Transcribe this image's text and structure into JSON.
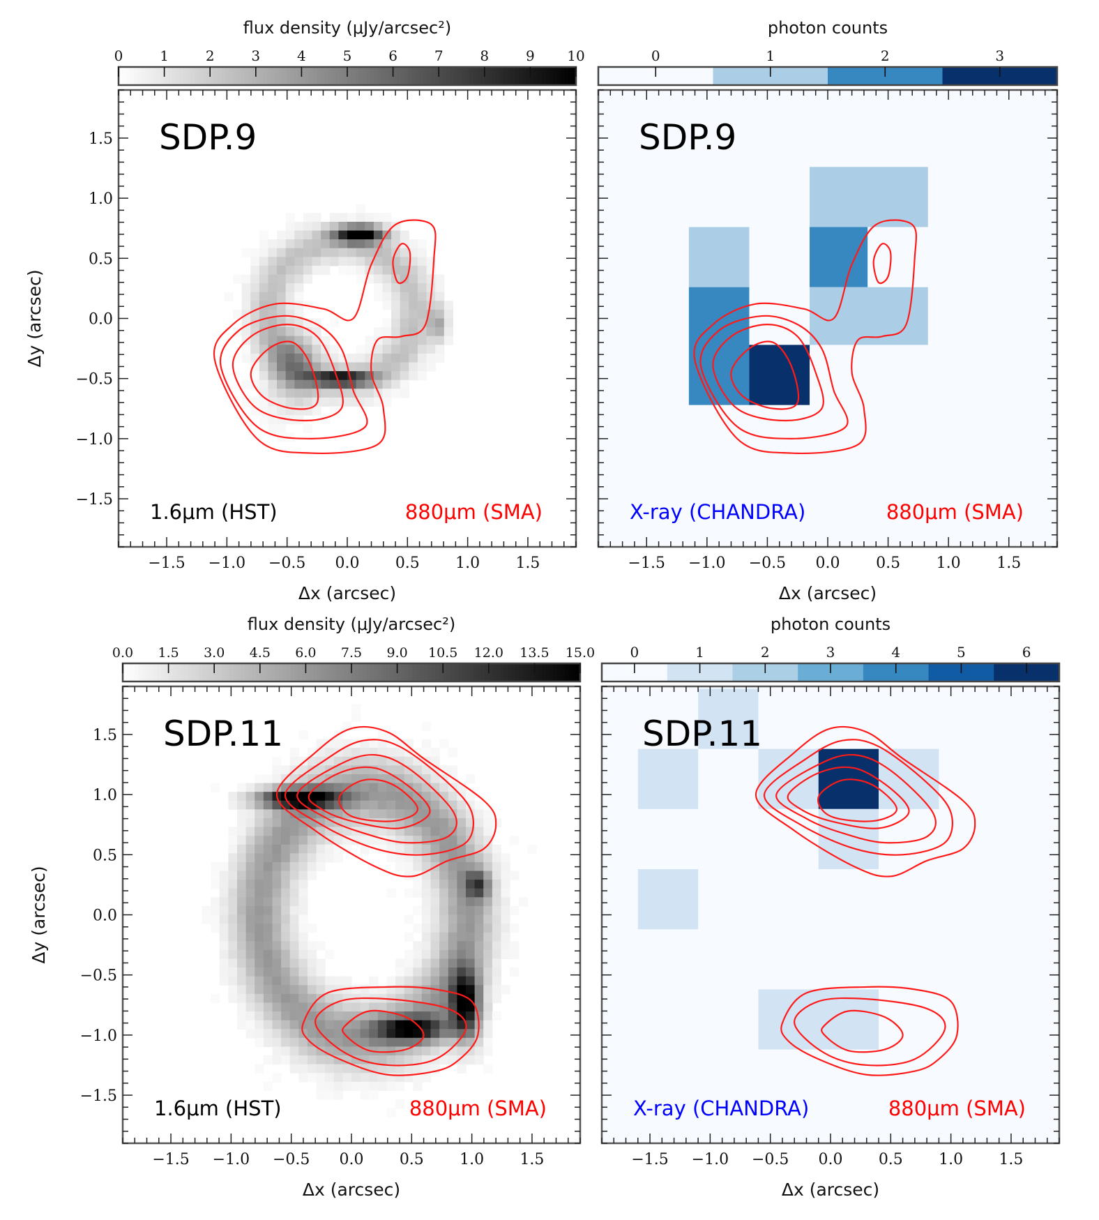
{
  "chart_data": [
    {
      "id": "sdp9-hst",
      "type": "heatmap",
      "title": "SDP.9",
      "colormap": "gray_r",
      "colorbar": {
        "label": "flux density (μJy/arcsec²)",
        "ticks": [
          "0",
          "1",
          "2",
          "3",
          "4",
          "5",
          "6",
          "7",
          "8",
          "9",
          "10"
        ],
        "range": [
          0,
          10
        ]
      },
      "xlabel": "Δx (arcsec)",
      "ylabel": "Δy (arcsec)",
      "xlim": [
        -1.9,
        1.9
      ],
      "ylim": [
        -1.9,
        1.9
      ],
      "xticks": [
        "−1.5",
        "−1.0",
        "−0.5",
        "0.0",
        "0.5",
        "1.0",
        "1.5"
      ],
      "yticks": [
        "1.5",
        "1.0",
        "0.5",
        "0.0",
        "−0.5",
        "−1.0",
        "−1.5"
      ],
      "legend_left": {
        "text": "1.6μm (HST)",
        "color": "#000000"
      },
      "legend_right": {
        "text": "880μm (SMA)",
        "color": "#ff0000"
      },
      "image_blobs": [
        {
          "x": -0.05,
          "y": 0.05,
          "rx": 0.75,
          "ry": 0.7,
          "value": 2.5,
          "ring": true
        },
        {
          "x": 0.1,
          "y": 0.7,
          "rx": 0.2,
          "ry": 0.07,
          "value": 10
        },
        {
          "x": -0.05,
          "y": -0.5,
          "rx": 0.25,
          "ry": 0.06,
          "value": 8
        },
        {
          "x": -0.45,
          "y": -0.4,
          "rx": 0.2,
          "ry": 0.3,
          "value": 3.5
        },
        {
          "x": 0.75,
          "y": -0.05,
          "rx": 0.08,
          "ry": 0.15,
          "value": 3
        }
      ],
      "contours": [
        {
          "level": 1,
          "points": [
            [
              -1.1,
              -0.35
            ],
            [
              -0.95,
              -0.05
            ],
            [
              -0.6,
              0.12
            ],
            [
              -0.2,
              0.08
            ],
            [
              0.05,
              0.0
            ],
            [
              0.2,
              0.45
            ],
            [
              0.4,
              0.78
            ],
            [
              0.7,
              0.78
            ],
            [
              0.72,
              0.5
            ],
            [
              0.65,
              -0.05
            ],
            [
              0.45,
              -0.15
            ],
            [
              0.25,
              -0.18
            ],
            [
              0.2,
              -0.45
            ],
            [
              0.3,
              -0.75
            ],
            [
              0.25,
              -1.05
            ],
            [
              -0.3,
              -1.12
            ],
            [
              -0.75,
              -1.0
            ],
            [
              -1.1,
              -0.35
            ]
          ]
        },
        {
          "level": 2,
          "points": [
            [
              -1.05,
              -0.4
            ],
            [
              -0.9,
              -0.1
            ],
            [
              -0.55,
              0.02
            ],
            [
              -0.25,
              -0.05
            ],
            [
              -0.05,
              -0.25
            ],
            [
              0.05,
              -0.6
            ],
            [
              0.15,
              -0.9
            ],
            [
              -0.3,
              -1.0
            ],
            [
              -0.75,
              -0.9
            ],
            [
              -1.05,
              -0.4
            ]
          ]
        },
        {
          "level": 3,
          "points": [
            [
              -0.95,
              -0.4
            ],
            [
              -0.8,
              -0.15
            ],
            [
              -0.5,
              -0.05
            ],
            [
              -0.25,
              -0.15
            ],
            [
              -0.1,
              -0.45
            ],
            [
              -0.05,
              -0.75
            ],
            [
              -0.35,
              -0.85
            ],
            [
              -0.75,
              -0.75
            ],
            [
              -0.95,
              -0.4
            ]
          ]
        },
        {
          "level": 4,
          "points": [
            [
              -0.8,
              -0.45
            ],
            [
              -0.65,
              -0.25
            ],
            [
              -0.45,
              -0.2
            ],
            [
              -0.3,
              -0.4
            ],
            [
              -0.25,
              -0.7
            ],
            [
              -0.45,
              -0.75
            ],
            [
              -0.7,
              -0.65
            ],
            [
              -0.8,
              -0.45
            ]
          ]
        },
        {
          "level": 4,
          "points": [
            [
              0.38,
              0.48
            ],
            [
              0.45,
              0.62
            ],
            [
              0.52,
              0.55
            ],
            [
              0.5,
              0.35
            ],
            [
              0.42,
              0.3
            ],
            [
              0.38,
              0.48
            ]
          ]
        }
      ]
    },
    {
      "id": "sdp9-chandra",
      "type": "heatmap",
      "title": "SDP.9",
      "colormap": "Blues",
      "colorbar": {
        "label": "photon counts",
        "ticks": [
          "0",
          "1",
          "2",
          "3"
        ],
        "range": [
          -0.5,
          3.5
        ],
        "colors": [
          "#f7fbff",
          "#abcde5",
          "#3787c0",
          "#08306b"
        ]
      },
      "xlabel": "Δx (arcsec)",
      "xlim": [
        -1.9,
        1.9
      ],
      "ylim": [
        -1.9,
        1.9
      ],
      "xticks": [
        "−1.5",
        "−1.0",
        "−0.5",
        "0.0",
        "0.5",
        "1.0",
        "1.5"
      ],
      "legend_left": {
        "text": "X-ray (CHANDRA)",
        "color": "#0000ff"
      },
      "legend_right": {
        "text": "880μm (SMA)",
        "color": "#ff0000"
      },
      "pixels": [
        {
          "x0": -1.15,
          "y0": 0.26,
          "x1": -0.65,
          "y1": 0.76,
          "count": 1
        },
        {
          "x0": -1.15,
          "y0": -0.72,
          "x1": -0.65,
          "y1": 0.26,
          "count": 2
        },
        {
          "x0": -0.65,
          "y0": -0.72,
          "x1": -0.15,
          "y1": -0.22,
          "count": 3
        },
        {
          "x0": -0.15,
          "y0": 0.76,
          "x1": 0.83,
          "y1": 1.26,
          "count": 1
        },
        {
          "x0": -0.15,
          "y0": 0.26,
          "x1": 0.33,
          "y1": 0.76,
          "count": 2
        },
        {
          "x0": -0.15,
          "y0": -0.22,
          "x1": 0.83,
          "y1": 0.26,
          "count": 1
        }
      ],
      "contours_ref": "sdp9-hst"
    },
    {
      "id": "sdp11-hst",
      "type": "heatmap",
      "title": "SDP.11",
      "colormap": "gray_r",
      "colorbar": {
        "label": "flux density (μJy/arcsec²)",
        "ticks": [
          "0.0",
          "1.5",
          "3.0",
          "4.5",
          "6.0",
          "7.5",
          "9.0",
          "10.5",
          "12.0",
          "13.5",
          "15.0"
        ],
        "range": [
          0,
          15
        ]
      },
      "xlabel": "Δx (arcsec)",
      "ylabel": "Δy (arcsec)",
      "xlim": [
        -1.9,
        1.9
      ],
      "ylim": [
        -1.9,
        1.9
      ],
      "xticks": [
        "−1.5",
        "−1.0",
        "−0.5",
        "0.0",
        "0.5",
        "1.0",
        "1.5"
      ],
      "yticks": [
        "1.5",
        "1.0",
        "0.5",
        "0.0",
        "−0.5",
        "−1.0",
        "−1.5"
      ],
      "legend_left": {
        "text": "1.6μm (HST)",
        "color": "#000000"
      },
      "legend_right": {
        "text": "880μm (SMA)",
        "color": "#ff0000"
      },
      "image_blobs": [
        {
          "x": 0.1,
          "y": 0.0,
          "rx": 1.05,
          "ry": 1.25,
          "value": 6,
          "ring": true
        },
        {
          "x": -0.45,
          "y": 0.97,
          "rx": 0.32,
          "ry": 0.08,
          "value": 15
        },
        {
          "x": 0.95,
          "y": -0.75,
          "rx": 0.12,
          "ry": 0.28,
          "value": 14
        },
        {
          "x": 0.5,
          "y": -0.95,
          "rx": 0.3,
          "ry": 0.1,
          "value": 11
        },
        {
          "x": 1.05,
          "y": 0.25,
          "rx": 0.1,
          "ry": 0.12,
          "value": 8
        }
      ],
      "contours": [
        {
          "level": 1,
          "points": [
            [
              -0.62,
              1.0
            ],
            [
              -0.3,
              1.35
            ],
            [
              0.0,
              1.55
            ],
            [
              0.3,
              1.52
            ],
            [
              0.6,
              1.3
            ],
            [
              1.1,
              0.95
            ],
            [
              1.2,
              0.75
            ],
            [
              1.1,
              0.55
            ],
            [
              0.8,
              0.45
            ],
            [
              0.5,
              0.32
            ],
            [
              0.2,
              0.4
            ],
            [
              -0.3,
              0.7
            ],
            [
              -0.62,
              1.0
            ]
          ]
        },
        {
          "level": 2,
          "points": [
            [
              -0.55,
              1.0
            ],
            [
              -0.2,
              1.3
            ],
            [
              0.1,
              1.45
            ],
            [
              0.4,
              1.4
            ],
            [
              0.8,
              1.1
            ],
            [
              1.0,
              0.85
            ],
            [
              0.95,
              0.6
            ],
            [
              0.6,
              0.5
            ],
            [
              0.2,
              0.55
            ],
            [
              -0.25,
              0.75
            ],
            [
              -0.55,
              1.0
            ]
          ]
        },
        {
          "level": 3,
          "points": [
            [
              -0.45,
              1.0
            ],
            [
              -0.1,
              1.25
            ],
            [
              0.2,
              1.33
            ],
            [
              0.5,
              1.2
            ],
            [
              0.85,
              0.85
            ],
            [
              0.8,
              0.65
            ],
            [
              0.45,
              0.6
            ],
            [
              0.1,
              0.68
            ],
            [
              -0.2,
              0.8
            ],
            [
              -0.45,
              1.0
            ]
          ]
        },
        {
          "level": 4,
          "points": [
            [
              -0.35,
              1.0
            ],
            [
              -0.1,
              1.18
            ],
            [
              0.2,
              1.22
            ],
            [
              0.5,
              1.05
            ],
            [
              0.65,
              0.85
            ],
            [
              0.4,
              0.72
            ],
            [
              0.0,
              0.78
            ],
            [
              -0.25,
              0.88
            ],
            [
              -0.35,
              1.0
            ]
          ]
        },
        {
          "level": 5,
          "points": [
            [
              -0.1,
              0.98
            ],
            [
              0.1,
              1.12
            ],
            [
              0.35,
              1.08
            ],
            [
              0.55,
              0.88
            ],
            [
              0.35,
              0.78
            ],
            [
              0.0,
              0.82
            ],
            [
              -0.1,
              0.98
            ]
          ]
        },
        {
          "level": 1,
          "points": [
            [
              -0.4,
              -0.9
            ],
            [
              -0.2,
              -0.65
            ],
            [
              0.3,
              -0.6
            ],
            [
              0.7,
              -0.62
            ],
            [
              1.0,
              -0.72
            ],
            [
              1.05,
              -1.0
            ],
            [
              0.9,
              -1.2
            ],
            [
              0.7,
              -1.3
            ],
            [
              0.3,
              -1.33
            ],
            [
              -0.1,
              -1.2
            ],
            [
              -0.35,
              -1.05
            ],
            [
              -0.4,
              -0.9
            ]
          ]
        },
        {
          "level": 2,
          "points": [
            [
              -0.3,
              -0.9
            ],
            [
              -0.1,
              -0.72
            ],
            [
              0.3,
              -0.7
            ],
            [
              0.8,
              -0.78
            ],
            [
              0.95,
              -0.95
            ],
            [
              0.7,
              -1.2
            ],
            [
              0.3,
              -1.25
            ],
            [
              -0.05,
              -1.15
            ],
            [
              -0.3,
              -0.9
            ]
          ]
        },
        {
          "level": 3,
          "points": [
            [
              -0.05,
              -0.92
            ],
            [
              0.15,
              -0.8
            ],
            [
              0.45,
              -0.85
            ],
            [
              0.6,
              -1.0
            ],
            [
              0.45,
              -1.12
            ],
            [
              0.15,
              -1.13
            ],
            [
              -0.05,
              -1.0
            ],
            [
              -0.05,
              -0.92
            ]
          ]
        }
      ]
    },
    {
      "id": "sdp11-chandra",
      "type": "heatmap",
      "title": "SDP.11",
      "colormap": "Blues",
      "colorbar": {
        "label": "photon counts",
        "ticks": [
          "0",
          "1",
          "2",
          "3",
          "4",
          "5",
          "6"
        ],
        "range": [
          -0.5,
          6.5
        ],
        "colors": [
          "#f7fbff",
          "#d2e3f3",
          "#abcfe5",
          "#6aaed6",
          "#3787c0",
          "#105ba4",
          "#08306b"
        ]
      },
      "xlabel": "Δx (arcsec)",
      "xlim": [
        -1.9,
        1.9
      ],
      "ylim": [
        -1.9,
        1.9
      ],
      "xticks": [
        "−1.5",
        "−1.0",
        "−0.5",
        "0.0",
        "0.5",
        "1.0",
        "1.5"
      ],
      "legend_left": {
        "text": "X-ray (CHANDRA)",
        "color": "#0000ff"
      },
      "legend_right": {
        "text": "880μm (SMA)",
        "color": "#ff0000"
      },
      "pixels": [
        {
          "x0": -1.1,
          "y0": 1.38,
          "x1": -0.6,
          "y1": 1.88,
          "count": 1
        },
        {
          "x0": -1.6,
          "y0": 0.88,
          "x1": -1.1,
          "y1": 1.38,
          "count": 1
        },
        {
          "x0": -0.6,
          "y0": 0.88,
          "x1": -0.1,
          "y1": 1.38,
          "count": 1
        },
        {
          "x0": -0.1,
          "y0": 0.88,
          "x1": 0.4,
          "y1": 1.38,
          "count": 6
        },
        {
          "x0": 0.4,
          "y0": 0.88,
          "x1": 0.9,
          "y1": 1.38,
          "count": 1
        },
        {
          "x0": -0.1,
          "y0": 0.38,
          "x1": 0.4,
          "y1": 0.88,
          "count": 1
        },
        {
          "x0": -1.6,
          "y0": -0.12,
          "x1": -1.1,
          "y1": 0.38,
          "count": 1
        },
        {
          "x0": -0.6,
          "y0": -1.12,
          "x1": 0.4,
          "y1": -0.62,
          "count": 1
        }
      ],
      "contours_ref": "sdp11-hst"
    }
  ]
}
